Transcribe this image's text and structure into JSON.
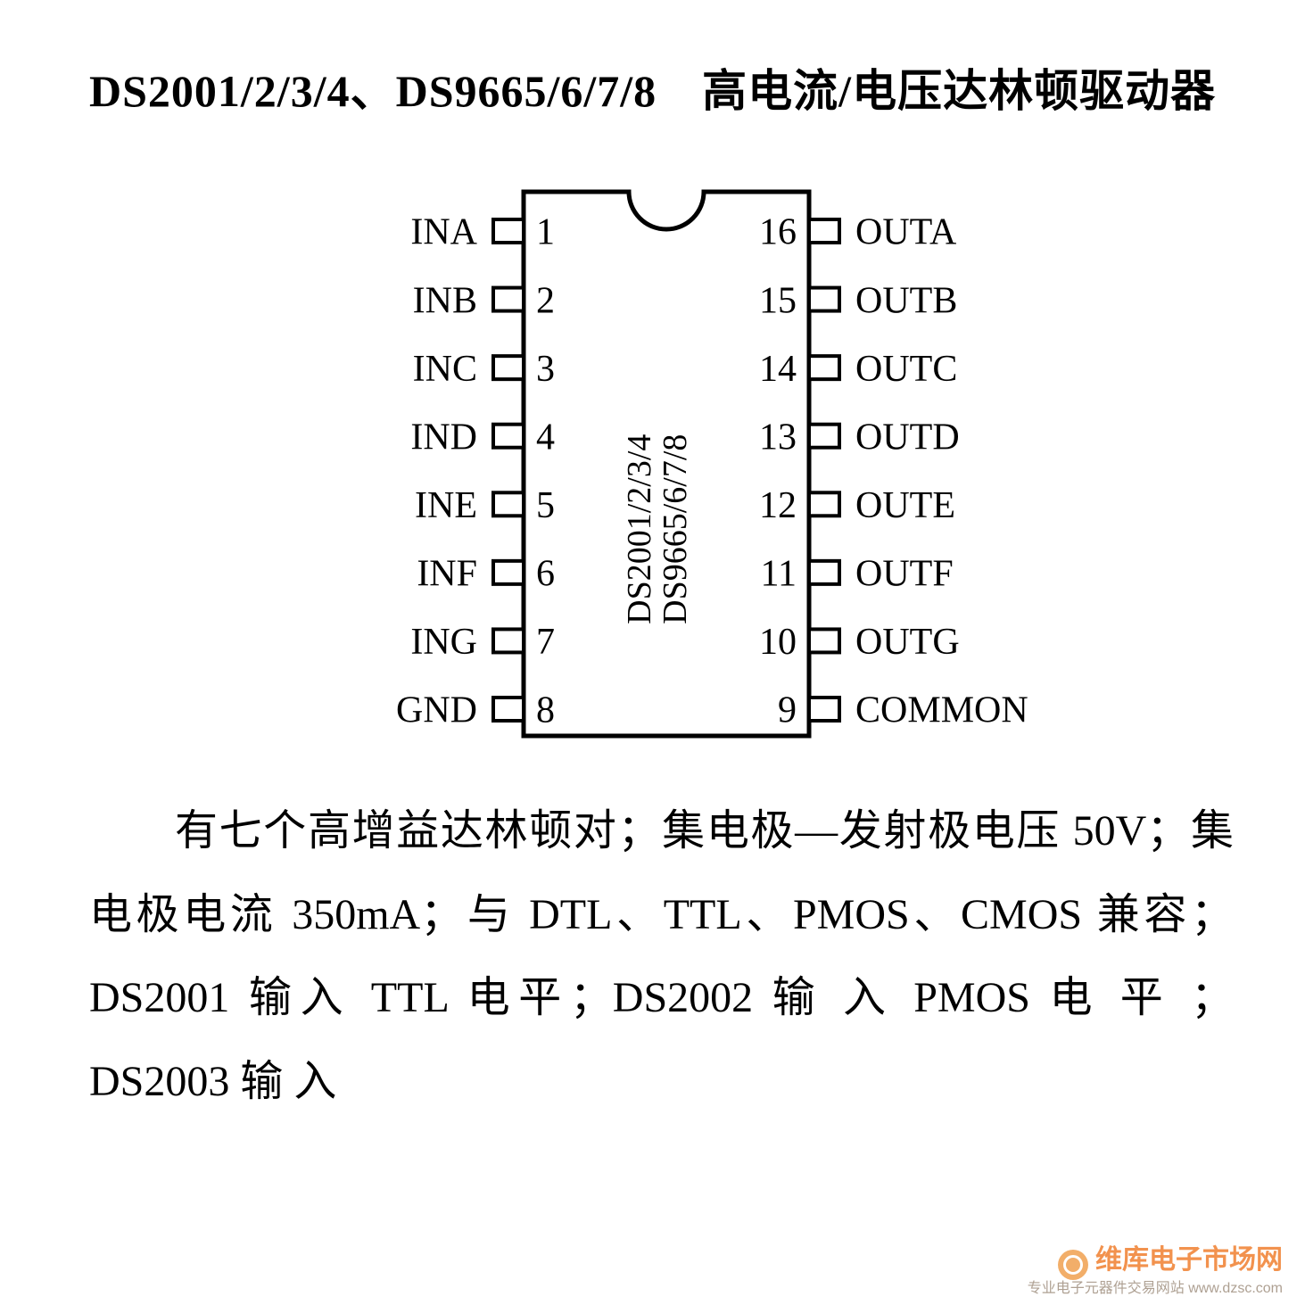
{
  "title_line": "DS2001/2/3/4、DS9665/6/7/8　高电流/电压达林顿驱动器",
  "chip": {
    "body_stroke": "#000000",
    "body_stroke_width": 5,
    "body_fill": "#ffffff",
    "body_width": 320,
    "body_height": 610,
    "notch_radius": 42,
    "pin_box_w": 34,
    "pin_box_h": 26,
    "pin_font_size": 42,
    "label_font_size": 42,
    "center_label_font_size": 38,
    "center_labels": [
      "DS2001/2/3/4",
      "DS9665/6/7/8"
    ],
    "left_pins": [
      {
        "num": "1",
        "label": "INA"
      },
      {
        "num": "2",
        "label": "INB"
      },
      {
        "num": "3",
        "label": "INC"
      },
      {
        "num": "4",
        "label": "IND"
      },
      {
        "num": "5",
        "label": "INE"
      },
      {
        "num": "6",
        "label": "INF"
      },
      {
        "num": "7",
        "label": "ING"
      },
      {
        "num": "8",
        "label": "GND"
      }
    ],
    "right_pins": [
      {
        "num": "16",
        "label": "OUTA"
      },
      {
        "num": "15",
        "label": "OUTB"
      },
      {
        "num": "14",
        "label": "OUTC"
      },
      {
        "num": "13",
        "label": "OUTD"
      },
      {
        "num": "12",
        "label": "OUTE"
      },
      {
        "num": "11",
        "label": "OUTF"
      },
      {
        "num": "10",
        "label": "OUTG"
      },
      {
        "num": "9",
        "label": "COMMON"
      }
    ]
  },
  "description": "有七个高增益达林顿对；集电极—发射极电压 50V；集电极电流 350mA；与 DTL、TTL、PMOS、CMOS 兼容；DS2001 输入 TTL 电平；DS2002 输 入 PMOS 电 平 ； DS2003 输 入",
  "watermark": {
    "main": "维库电子市场网",
    "sub": "专业电子元器件交易网站 www.dzsc.com",
    "color_main": "#f08030",
    "color_sub": "#a09080"
  }
}
